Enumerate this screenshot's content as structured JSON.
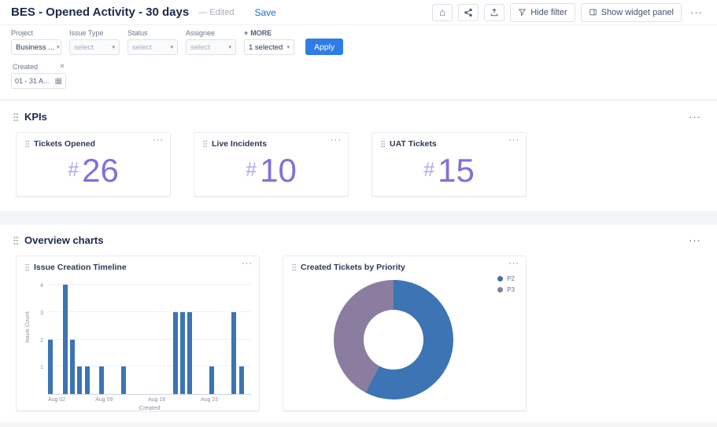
{
  "glyphs": {
    "home": "⌂",
    "ellipsis": "···",
    "caret": "▾",
    "close": "×",
    "plus": "+",
    "calendar": "▦"
  },
  "colors": {
    "accent_blue": "#2f7ce8",
    "link_blue": "#1a6fd4",
    "kpi_value": "#8170d8",
    "kpi_prefix": "#b2a4ee",
    "bar_blue": "#3c74b4",
    "donut_purple": "#8a7d9f"
  },
  "topbar": {
    "title": "BES - Opened Activity - 30 days",
    "edited": "— Edited",
    "save": "Save",
    "hide_filter": "Hide filter",
    "show_widget_panel": "Show widget panel"
  },
  "filters": {
    "fields": [
      {
        "label": "Project",
        "value": "Business ...",
        "enabled": true
      },
      {
        "label": "Issue Type",
        "value": "select",
        "enabled": false
      },
      {
        "label": "Status",
        "value": "select",
        "enabled": false
      },
      {
        "label": "Assignee",
        "value": "select",
        "enabled": false
      }
    ],
    "more": "MORE",
    "selected": "1 selected",
    "apply": "Apply",
    "created": {
      "label": "Created",
      "value": "01 - 31 A..."
    }
  },
  "kpi_section": {
    "title": "KPIs"
  },
  "charts_section": {
    "title": "Overview charts"
  },
  "kpis": [
    {
      "title": "Tickets Opened",
      "prefix": "#",
      "value": "26"
    },
    {
      "title": "Live Incidents",
      "prefix": "#",
      "value": "10"
    },
    {
      "title": "UAT Tickets",
      "prefix": "#",
      "value": "15"
    }
  ],
  "chart_data": [
    {
      "type": "bar",
      "title": "Issue Creation Timeline",
      "xlabel": "Created",
      "ylabel": "Issue Count",
      "ylim": [
        0,
        4
      ],
      "y_ticks": [
        1,
        2,
        3,
        4
      ],
      "grid": true,
      "bar_color": "#3c74b4",
      "categories": [
        "Aug 02",
        "Aug 03",
        "Aug 04",
        "Aug 05",
        "Aug 06",
        "Aug 07",
        "Aug 08",
        "Aug 09",
        "Aug 10",
        "Aug 11",
        "Aug 12",
        "Aug 13",
        "Aug 14",
        "Aug 15",
        "Aug 16",
        "Aug 17",
        "Aug 18",
        "Aug 19",
        "Aug 20",
        "Aug 21",
        "Aug 22",
        "Aug 23",
        "Aug 24",
        "Aug 25",
        "Aug 26",
        "Aug 27",
        "Aug 28",
        "Aug 29"
      ],
      "values": [
        2,
        0,
        4,
        2,
        1,
        1,
        0,
        1,
        0,
        0,
        1,
        0,
        0,
        0,
        0,
        0,
        0,
        3,
        3,
        3,
        0,
        0,
        1,
        0,
        0,
        3,
        1,
        0
      ],
      "x_ticks": [
        {
          "label": "Aug 02",
          "index": 0
        },
        {
          "label": "Aug 09",
          "index": 7
        },
        {
          "label": "Aug 16",
          "index": 14
        },
        {
          "label": "Aug 23",
          "index": 21
        }
      ]
    },
    {
      "type": "pie",
      "title": "Created Tickets by Priority",
      "donut": true,
      "legend_position": "top-right",
      "slices": [
        {
          "label": "P2",
          "value": 15,
          "color": "#3c74b4"
        },
        {
          "label": "P3",
          "value": 11,
          "color": "#8a7d9f"
        }
      ]
    }
  ]
}
